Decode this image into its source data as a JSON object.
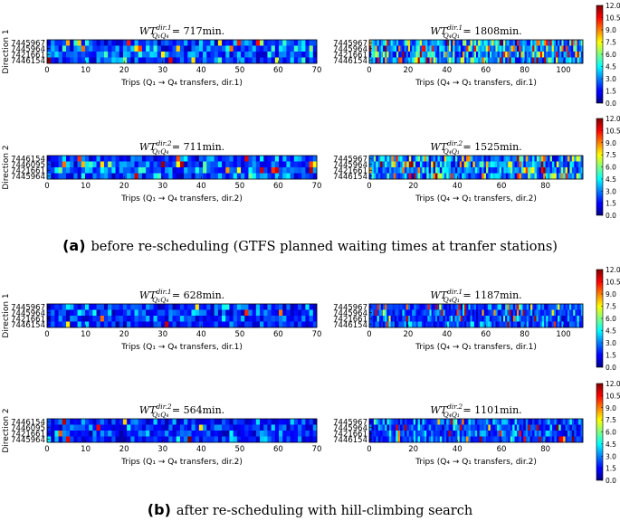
{
  "colormap": {
    "name": "jet",
    "min": 0.0,
    "max": 12.0,
    "ticks": [
      "0.0",
      "1.5",
      "3.0",
      "4.5",
      "6.0",
      "7.5",
      "9.0",
      "10.5",
      "12.0"
    ]
  },
  "row_labels": {
    "dir1": [
      "7445967",
      "7445964",
      "7421661",
      "7446154"
    ],
    "dir2_q1q4": [
      "7446154",
      "7446095",
      "7421661",
      "7445964"
    ],
    "dir2_q4q1": [
      "7445967",
      "7445964",
      "7421661",
      "7446154"
    ]
  },
  "direction_labels": [
    "Direction 1",
    "Direction 2"
  ],
  "captions": {
    "a": {
      "tag": "(a)",
      "text": "before re-scheduling (GTFS planned waiting times at tranfer stations)"
    },
    "b": {
      "tag": "(b)",
      "text": "after re-scheduling with hill-climbing search"
    }
  },
  "chart_data": [
    {
      "id": "a11",
      "type": "heatmap",
      "panel": "a",
      "direction": 1,
      "title_main": "WT",
      "title_sup": "dir.1",
      "title_sub": "Q₁Q₄",
      "title_value": " = 717min.",
      "xlabel": "Trips (Q₁ → Q₄ transfers, dir.1)",
      "n_trips": 71,
      "xticks": [
        0,
        10,
        20,
        30,
        40,
        50,
        60,
        70
      ],
      "xlim": [
        0,
        70
      ],
      "rows": "dir1",
      "seed": 11,
      "mean": 3.0,
      "hot": 0.04
    },
    {
      "id": "a12",
      "type": "heatmap",
      "panel": "a",
      "direction": 1,
      "title_main": "WT",
      "title_sup": "dir.1",
      "title_sub": "Q₄Q₁",
      "title_value": " = 1808min.",
      "xlabel": "Trips (Q₄ → Q₁ transfers, dir.1)",
      "n_trips": 110,
      "xticks": [
        0,
        20,
        40,
        60,
        80,
        100
      ],
      "xlim": [
        0,
        110
      ],
      "rows": "dir1",
      "seed": 12,
      "mean": 4.2,
      "hot": 0.14
    },
    {
      "id": "a21",
      "type": "heatmap",
      "panel": "a",
      "direction": 2,
      "title_main": "WT",
      "title_sup": "dir.2",
      "title_sub": "Q₁Q₄",
      "title_value": " = 711min.",
      "xlabel": "Trips (Q₁ → Q₄ transfers, dir.2)",
      "n_trips": 71,
      "xticks": [
        0,
        10,
        20,
        30,
        40,
        50,
        60,
        70
      ],
      "xlim": [
        0,
        70
      ],
      "rows": "dir2_q1q4",
      "seed": 21,
      "mean": 3.0,
      "hot": 0.05
    },
    {
      "id": "a22",
      "type": "heatmap",
      "panel": "a",
      "direction": 2,
      "title_main": "WT",
      "title_sup": "dir.2",
      "title_sub": "Q₄Q₁",
      "title_value": " = 1525min.",
      "xlabel": "Trips (Q₄ → Q₁ transfers, dir.2)",
      "n_trips": 97,
      "xticks": [
        0,
        20,
        40,
        60,
        80
      ],
      "xlim": [
        0,
        97
      ],
      "rows": "dir2_q4q1",
      "seed": 22,
      "mean": 4.0,
      "hot": 0.12
    },
    {
      "id": "b11",
      "type": "heatmap",
      "panel": "b",
      "direction": 1,
      "title_main": "WT",
      "title_sup": "dir.1",
      "title_sub": "Q₁Q₄",
      "title_value": " = 628min.",
      "xlabel": "Trips (Q₁ → Q₄ transfers, dir.1)",
      "n_trips": 71,
      "xticks": [
        0,
        10,
        20,
        30,
        40,
        50,
        60,
        70
      ],
      "xlim": [
        0,
        70
      ],
      "rows": "dir1",
      "seed": 31,
      "mean": 2.6,
      "hot": 0.02
    },
    {
      "id": "b12",
      "type": "heatmap",
      "panel": "b",
      "direction": 1,
      "title_main": "WT",
      "title_sup": "dir.1",
      "title_sub": "Q₄Q₁",
      "title_value": " = 1187min.",
      "xlabel": "Trips (Q₄ → Q₁ transfers, dir.1)",
      "n_trips": 110,
      "xticks": [
        0,
        20,
        40,
        60,
        80,
        100
      ],
      "xlim": [
        0,
        110
      ],
      "rows": "dir1",
      "seed": 32,
      "mean": 2.8,
      "hot": 0.06
    },
    {
      "id": "b21",
      "type": "heatmap",
      "panel": "b",
      "direction": 2,
      "title_main": "WT",
      "title_sup": "dir.2",
      "title_sub": "Q₁Q₄",
      "title_value": " = 564min.",
      "xlabel": "Trips (Q₁ → Q₄ transfers, dir.2)",
      "n_trips": 71,
      "xticks": [
        0,
        10,
        20,
        30,
        40,
        50,
        60,
        70
      ],
      "xlim": [
        0,
        70
      ],
      "rows": "dir2_q1q4",
      "seed": 41,
      "mean": 2.4,
      "hot": 0.02
    },
    {
      "id": "b22",
      "type": "heatmap",
      "panel": "b",
      "direction": 2,
      "title_main": "WT",
      "title_sup": "dir.2",
      "title_sub": "Q₄Q₁",
      "title_value": " = 1101min.",
      "xlabel": "Trips (Q₄ → Q₁ transfers, dir.2)",
      "n_trips": 97,
      "xticks": [
        0,
        20,
        40,
        60,
        80
      ],
      "xlim": [
        0,
        97
      ],
      "rows": "dir2_q4q1",
      "seed": 42,
      "mean": 2.9,
      "hot": 0.07
    }
  ]
}
